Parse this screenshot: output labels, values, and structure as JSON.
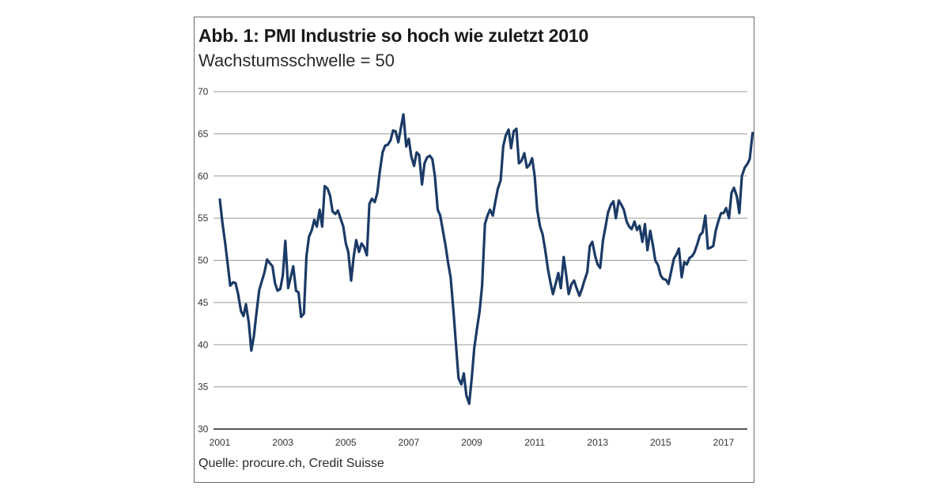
{
  "chart_data": {
    "type": "line",
    "title": "Abb. 1: PMI Industrie so hoch wie zuletzt 2010",
    "subtitle": "Wachstumsschwelle = 50",
    "source": "Quelle: procure.ch, Credit Suisse",
    "xlabel": "",
    "ylabel": "",
    "ylim": [
      30,
      70
    ],
    "xlim": [
      2001.0,
      2017.92
    ],
    "grid": true,
    "legend": "none",
    "y_ticks": [
      "70",
      "65",
      "60",
      "55",
      "50",
      "45",
      "40",
      "35",
      "30"
    ],
    "y_tick_values": [
      70,
      65,
      60,
      55,
      50,
      45,
      40,
      35,
      30
    ],
    "x_ticks": [
      "2001",
      "2003",
      "2005",
      "2007",
      "2009",
      "2011",
      "2013",
      "2015",
      "2017"
    ],
    "x_tick_values": [
      2001,
      2003,
      2005,
      2007,
      2009,
      2011,
      2013,
      2015,
      2017
    ],
    "series": [
      {
        "name": "PMI Industrie",
        "color": "#1b3a66",
        "x": [
          2001.0,
          2001.08,
          2001.17,
          2001.25,
          2001.33,
          2001.42,
          2001.5,
          2001.58,
          2001.67,
          2001.75,
          2001.83,
          2001.92,
          2002.0,
          2002.08,
          2002.17,
          2002.25,
          2002.33,
          2002.42,
          2002.5,
          2002.58,
          2002.67,
          2002.75,
          2002.83,
          2002.92,
          2003.0,
          2003.08,
          2003.17,
          2003.25,
          2003.33,
          2003.42,
          2003.5,
          2003.58,
          2003.67,
          2003.75,
          2003.83,
          2003.92,
          2004.0,
          2004.08,
          2004.17,
          2004.25,
          2004.33,
          2004.42,
          2004.5,
          2004.58,
          2004.67,
          2004.75,
          2004.83,
          2004.92,
          2005.0,
          2005.08,
          2005.17,
          2005.25,
          2005.33,
          2005.42,
          2005.5,
          2005.58,
          2005.67,
          2005.75,
          2005.83,
          2005.92,
          2006.0,
          2006.08,
          2006.17,
          2006.25,
          2006.33,
          2006.42,
          2006.5,
          2006.58,
          2006.67,
          2006.75,
          2006.83,
          2006.92,
          2007.0,
          2007.08,
          2007.17,
          2007.25,
          2007.33,
          2007.42,
          2007.5,
          2007.58,
          2007.67,
          2007.75,
          2007.83,
          2007.92,
          2008.0,
          2008.08,
          2008.17,
          2008.25,
          2008.33,
          2008.42,
          2008.5,
          2008.58,
          2008.67,
          2008.75,
          2008.83,
          2008.92,
          2009.0,
          2009.08,
          2009.17,
          2009.25,
          2009.33,
          2009.42,
          2009.5,
          2009.58,
          2009.67,
          2009.75,
          2009.83,
          2009.92,
          2010.0,
          2010.08,
          2010.17,
          2010.25,
          2010.33,
          2010.42,
          2010.5,
          2010.58,
          2010.67,
          2010.75,
          2010.83,
          2010.92,
          2011.0,
          2011.08,
          2011.17,
          2011.25,
          2011.33,
          2011.42,
          2011.5,
          2011.58,
          2011.67,
          2011.75,
          2011.83,
          2011.92,
          2012.0,
          2012.08,
          2012.17,
          2012.25,
          2012.33,
          2012.42,
          2012.5,
          2012.58,
          2012.67,
          2012.75,
          2012.83,
          2012.92,
          2013.0,
          2013.08,
          2013.17,
          2013.25,
          2013.33,
          2013.42,
          2013.5,
          2013.58,
          2013.67,
          2013.75,
          2013.83,
          2013.92,
          2014.0,
          2014.08,
          2014.17,
          2014.25,
          2014.33,
          2014.42,
          2014.5,
          2014.58,
          2014.67,
          2014.75,
          2014.83,
          2014.92,
          2015.0,
          2015.08,
          2015.17,
          2015.25,
          2015.33,
          2015.42,
          2015.5,
          2015.58,
          2015.67,
          2015.75,
          2015.83,
          2015.92,
          2016.0,
          2016.08,
          2016.17,
          2016.25,
          2016.33,
          2016.42,
          2016.5,
          2016.58,
          2016.67,
          2016.75,
          2016.83,
          2016.92,
          2017.0,
          2017.08,
          2017.17,
          2017.25,
          2017.33,
          2017.42,
          2017.5,
          2017.58,
          2017.67,
          2017.75,
          2017.83,
          2017.92
        ],
        "values": [
          57.2,
          54.5,
          52.0,
          49.5,
          47.0,
          47.4,
          47.3,
          46.0,
          44.0,
          43.4,
          44.8,
          42.6,
          39.3,
          41.0,
          44.0,
          46.5,
          47.5,
          48.6,
          50.1,
          49.7,
          49.3,
          47.3,
          46.4,
          46.6,
          48.2,
          52.3,
          46.7,
          48.0,
          49.3,
          46.4,
          46.2,
          43.3,
          43.7,
          50.5,
          52.8,
          53.6,
          54.8,
          54.0,
          56.0,
          54.0,
          58.8,
          58.5,
          57.7,
          55.8,
          55.5,
          55.9,
          55.0,
          54.0,
          52.0,
          51.0,
          47.6,
          50.4,
          52.4,
          51.0,
          52.0,
          51.6,
          50.6,
          56.7,
          57.3,
          56.9,
          58.0,
          60.5,
          62.8,
          63.6,
          63.7,
          64.2,
          65.4,
          65.3,
          64.0,
          65.7,
          67.3,
          63.5,
          64.4,
          62.3,
          61.2,
          62.8,
          62.5,
          59.0,
          61.5,
          62.2,
          62.4,
          62.0,
          60.0,
          56.0,
          55.3,
          53.6,
          51.7,
          49.7,
          48.0,
          44.0,
          40.0,
          36.0,
          35.3,
          36.6,
          34.0,
          33.0,
          36.0,
          39.6,
          42.0,
          44.0,
          47.0,
          54.3,
          55.3,
          56.0,
          55.3,
          57.0,
          58.5,
          59.5,
          63.5,
          64.8,
          65.5,
          63.3,
          65.3,
          65.6,
          61.5,
          61.8,
          62.7,
          61.0,
          61.3,
          62.1,
          60.0,
          56.0,
          54.0,
          53.1,
          51.3,
          49.0,
          47.4,
          46.0,
          47.3,
          48.5,
          46.7,
          50.4,
          48.3,
          46.0,
          47.2,
          47.6,
          46.7,
          45.8,
          46.6,
          47.6,
          48.6,
          51.7,
          52.2,
          50.5,
          49.5,
          49.1,
          52.4,
          54.0,
          55.7,
          56.6,
          57.0,
          55.0,
          57.1,
          56.6,
          56.0,
          54.6,
          54.0,
          53.7,
          54.6,
          53.6,
          54.1,
          52.2,
          54.3,
          51.2,
          53.5,
          51.9,
          50.0,
          49.4,
          48.2,
          47.8,
          47.7,
          47.2,
          48.6,
          50.2,
          50.7,
          51.4,
          48.0,
          49.8,
          49.5,
          50.3,
          50.5,
          51.0,
          52.0,
          53.0,
          53.3,
          55.3,
          51.4,
          51.5,
          51.7,
          53.5,
          54.6,
          55.6,
          55.6,
          56.2,
          55.0,
          58.0,
          58.6,
          57.6,
          55.6,
          60.0,
          61.0,
          61.4,
          62.0,
          65.1
        ]
      }
    ]
  }
}
